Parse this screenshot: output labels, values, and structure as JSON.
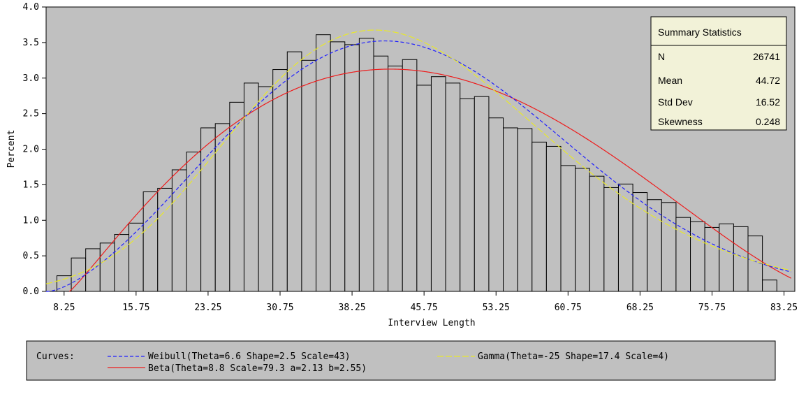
{
  "chart_data": {
    "type": "bar",
    "xlabel": "Interview Length",
    "ylabel": "Percent",
    "x_range": [
      6.375,
      84.375
    ],
    "ylim": [
      0,
      4.0
    ],
    "bin_width": 1.5,
    "x_ticks": [
      "8.25",
      "15.75",
      "23.25",
      "30.75",
      "38.25",
      "45.75",
      "53.25",
      "60.75",
      "68.25",
      "75.75",
      "83.25"
    ],
    "y_ticks": [
      "0.0",
      "0.5",
      "1.0",
      "1.5",
      "2.0",
      "2.5",
      "3.0",
      "3.5",
      "4.0"
    ],
    "bin_start": 8.25,
    "values": [
      0.22,
      0.47,
      0.6,
      0.68,
      0.8,
      0.96,
      1.4,
      1.45,
      1.71,
      1.96,
      2.3,
      2.36,
      2.66,
      2.93,
      2.88,
      3.12,
      3.37,
      3.25,
      3.61,
      3.51,
      3.47,
      3.56,
      3.31,
      3.17,
      3.26,
      2.9,
      3.02,
      2.93,
      2.71,
      2.74,
      2.44,
      2.3,
      2.29,
      2.1,
      2.04,
      1.77,
      1.73,
      1.62,
      1.46,
      1.51,
      1.39,
      1.29,
      1.25,
      1.04,
      0.98,
      0.9,
      0.95,
      0.91,
      0.78,
      0.16
    ],
    "curves": [
      {
        "name": "Weibull(Theta=6.6 Shape=2.5 Scale=43)",
        "dist": "weibull",
        "theta": 6.6,
        "shape": 2.5,
        "scale": 43,
        "color": "#1f1fff",
        "dash": "5,3"
      },
      {
        "name": "Gamma(Theta=-25 Shape=17.4 Scale=4)",
        "dist": "gamma",
        "theta": -25,
        "shape": 17.4,
        "scale": 4,
        "color": "#e8e82a",
        "dash": "9,3"
      },
      {
        "name": "Beta(Theta=8.8 Scale=79.3 a=2.13 b=2.55)",
        "dist": "beta",
        "theta": 8.8,
        "scale": 79.3,
        "a": 2.13,
        "b": 2.55,
        "color": "#ee1c1c",
        "dash": ""
      }
    ]
  },
  "summary": {
    "title": "Summary Statistics",
    "rows": [
      {
        "label": "N",
        "value": "26741"
      },
      {
        "label": "Mean",
        "value": "44.72"
      },
      {
        "label": "Std Dev",
        "value": "16.52"
      },
      {
        "label": "Skewness",
        "value": "0.248"
      }
    ]
  },
  "legend": {
    "label": "Curves:"
  },
  "colors": {
    "plot_bg": "#c0c0c0",
    "panel_bg": "#f2f2d8",
    "bar_fill": "#c0c0c0",
    "bar_stroke": "#000000"
  }
}
